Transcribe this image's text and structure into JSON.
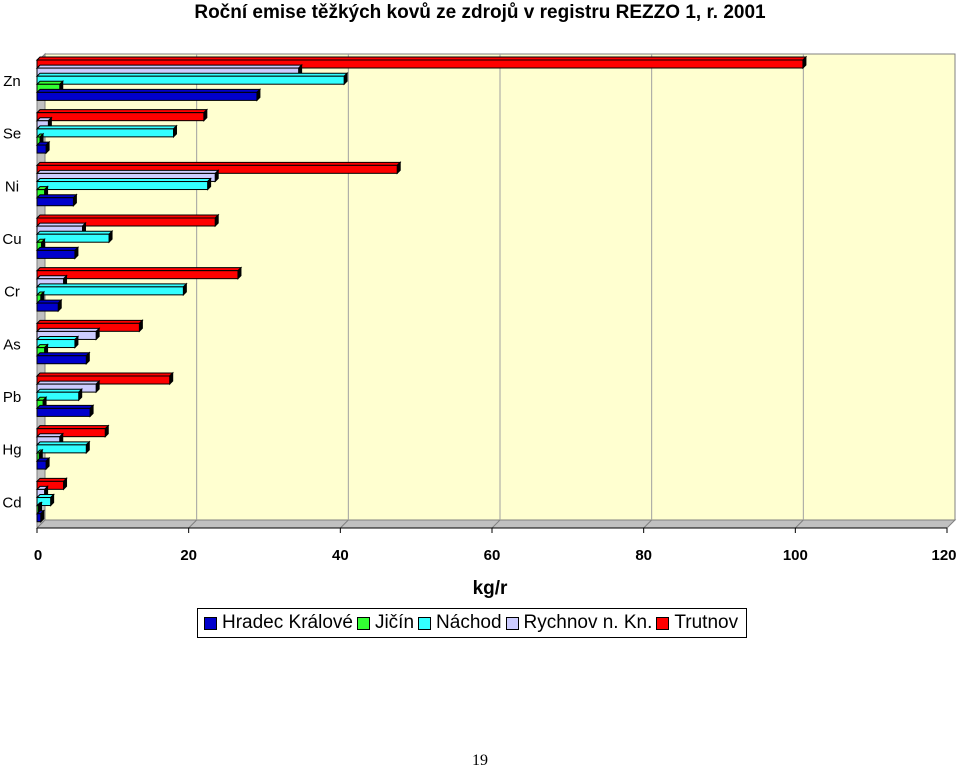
{
  "page": {
    "number": "19"
  },
  "chart_data": {
    "type": "bar",
    "orientation": "horizontal",
    "title": "Roční emise těžkých kovů ze zdrojů v registru REZZO 1, r. 2001",
    "xlabel": "kg/r",
    "ylabel": "",
    "xlim": [
      0,
      120
    ],
    "xticks": [
      "0",
      "20",
      "40",
      "60",
      "80",
      "100",
      "120"
    ],
    "categories": [
      "Zn",
      "Se",
      "Ni",
      "Cu",
      "Cr",
      "As",
      "Pb",
      "Hg",
      "Cd"
    ],
    "grid": true,
    "legend_position": "bottom",
    "plot_background": "#FFFFD0",
    "series": [
      {
        "name": "Hradec Králové",
        "color": "#0000CC",
        "values": [
          29.0,
          1.2,
          4.8,
          5.0,
          2.8,
          6.5,
          7.0,
          1.2,
          0.5
        ]
      },
      {
        "name": "Jičín",
        "color": "#33FF33",
        "values": [
          3.0,
          0.4,
          1.0,
          0.6,
          0.5,
          1.0,
          0.8,
          0.3,
          0.2
        ]
      },
      {
        "name": "Náchod",
        "color": "#33FFFF",
        "values": [
          40.5,
          18.0,
          22.5,
          9.5,
          19.3,
          5.0,
          5.5,
          6.5,
          1.8
        ]
      },
      {
        "name": "Rychnov n. Kn.",
        "color": "#CCCCFF",
        "values": [
          34.5,
          1.5,
          23.5,
          6.0,
          3.5,
          7.8,
          7.8,
          3.0,
          1.0
        ]
      },
      {
        "name": "Trutnov",
        "color": "#FF0000",
        "values": [
          101.0,
          22.0,
          47.5,
          23.5,
          26.5,
          13.5,
          17.5,
          9.0,
          3.5
        ]
      }
    ]
  }
}
